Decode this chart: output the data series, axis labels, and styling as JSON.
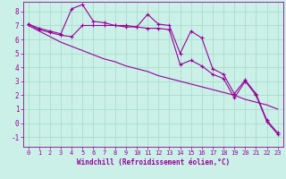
{
  "xlabel": "Windchill (Refroidissement éolien,°C)",
  "bg_color": "#caf0e8",
  "grid_color": "#aaddcc",
  "line_color": "#990099",
  "x_ticks": [
    0,
    1,
    2,
    3,
    4,
    5,
    6,
    7,
    8,
    9,
    10,
    11,
    12,
    13,
    14,
    15,
    16,
    17,
    18,
    19,
    20,
    21,
    22,
    23
  ],
  "y_ticks": [
    -1,
    0,
    1,
    2,
    3,
    4,
    5,
    6,
    7,
    8
  ],
  "xlim": [
    -0.5,
    23.5
  ],
  "ylim": [
    -1.7,
    8.7
  ],
  "series1_y": [
    7.1,
    6.8,
    6.6,
    6.4,
    8.2,
    8.5,
    7.3,
    7.2,
    7.0,
    6.9,
    6.9,
    7.8,
    7.1,
    7.0,
    5.0,
    6.6,
    6.1,
    3.9,
    3.5,
    2.1,
    3.1,
    2.1,
    0.2,
    -0.7
  ],
  "series2_y": [
    7.1,
    6.7,
    6.5,
    6.3,
    6.2,
    7.0,
    7.0,
    7.0,
    7.0,
    7.0,
    6.9,
    6.8,
    6.8,
    6.7,
    4.2,
    4.5,
    4.1,
    3.5,
    3.2,
    1.8,
    3.0,
    2.0,
    0.1,
    -0.8
  ],
  "series3_y": [
    7.0,
    6.6,
    6.2,
    5.8,
    5.5,
    5.2,
    4.9,
    4.6,
    4.4,
    4.1,
    3.9,
    3.7,
    3.4,
    3.2,
    3.0,
    2.8,
    2.6,
    2.4,
    2.2,
    2.0,
    1.7,
    1.5,
    1.3,
    1.0
  ]
}
